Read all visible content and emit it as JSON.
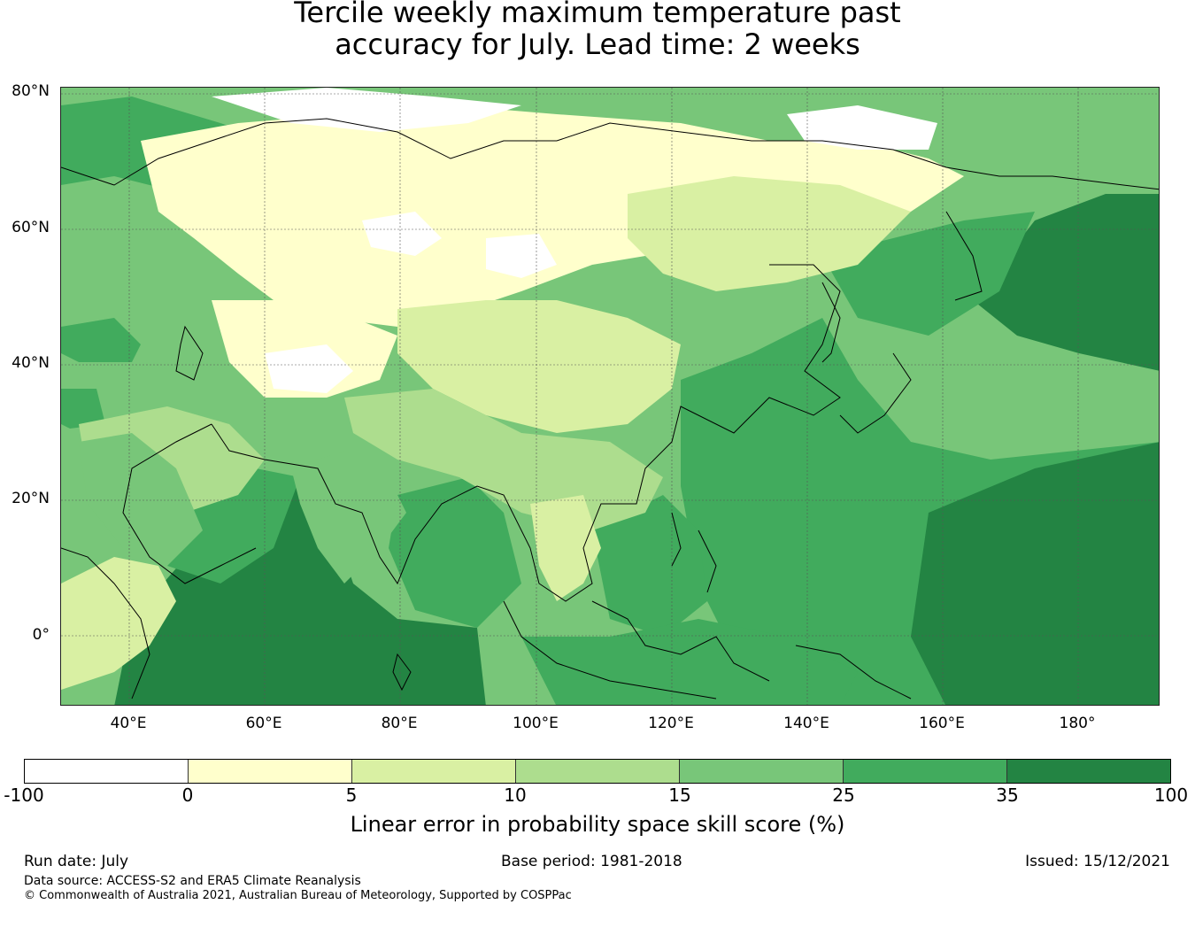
{
  "title": {
    "line1": "Tercile weekly maximum temperature past",
    "line2": "accuracy for July. Lead time: 2 weeks"
  },
  "map": {
    "lat_labels": [
      "80°N",
      "60°N",
      "40°N",
      "20°N",
      "0°"
    ],
    "lon_labels": [
      "40°E",
      "60°E",
      "80°E",
      "100°E",
      "120°E",
      "140°E",
      "160°E",
      "180°"
    ],
    "extent": {
      "lon": [
        30,
        192
      ],
      "lat": [
        -10,
        81
      ]
    }
  },
  "colorbar": {
    "ticks": [
      "-100",
      "0",
      "5",
      "10",
      "15",
      "25",
      "35",
      "100"
    ],
    "colors": [
      "#ffffff",
      "#ffffcc",
      "#d9f0a3",
      "#addd8e",
      "#78c679",
      "#41ab5d",
      "#238443"
    ],
    "label": "Linear error in probability space skill score (%)"
  },
  "footer": {
    "run_date": "Run date: July",
    "base_period": "Base period: 1981-2018",
    "issued": "Issued: 15/12/2021",
    "data_source": "Data source: ACCESS-S2 and ERA5 Climate Reanalysis",
    "copyright": "© Commonwealth of Australia 2021, Australian Bureau of Meteorology, Supported by COSPPac"
  }
}
